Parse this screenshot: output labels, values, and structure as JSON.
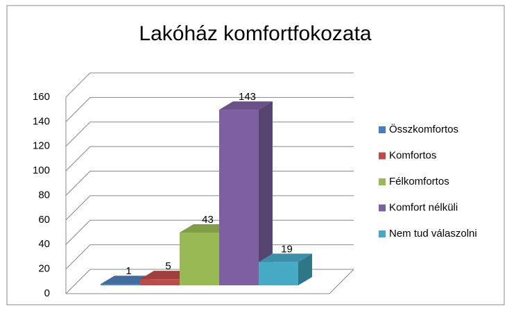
{
  "chart_data": {
    "type": "bar",
    "title": "Lakóház komfortfokozata",
    "series": [
      {
        "name": "Összkomfortos",
        "color": "#4a7ebb",
        "values": [
          1
        ]
      },
      {
        "name": "Komfortos",
        "color": "#be4b48",
        "values": [
          5
        ]
      },
      {
        "name": "Félkomfortos",
        "color": "#98b954",
        "values": [
          43
        ]
      },
      {
        "name": "Komfort nélküli",
        "color": "#7d60a0",
        "values": [
          143
        ]
      },
      {
        "name": "Nem tud válaszolni",
        "color": "#46aac5",
        "values": [
          19
        ]
      }
    ],
    "ylim": [
      0,
      160
    ],
    "yticks": [
      0,
      20,
      40,
      60,
      80,
      100,
      120,
      140,
      160
    ],
    "grid": true,
    "legend": "right"
  }
}
